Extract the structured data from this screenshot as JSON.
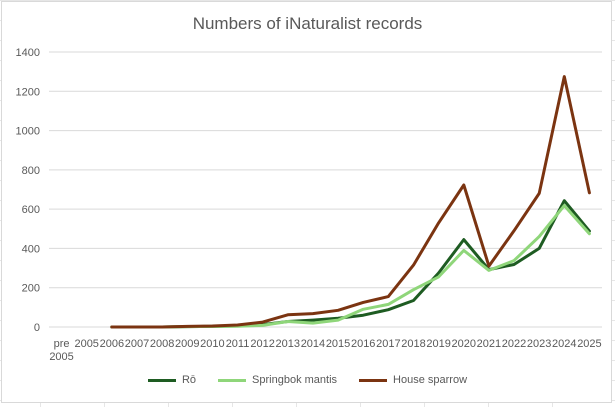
{
  "chart_data": {
    "type": "line",
    "title": "Numbers of iNaturalist records",
    "xlabel": "",
    "ylabel": "",
    "categories": [
      "pre 2005",
      "2005",
      "2006",
      "2007",
      "2008",
      "2009",
      "2010",
      "2011",
      "2012",
      "2013",
      "2014",
      "2015",
      "2016",
      "2017",
      "2018",
      "2019",
      "2020",
      "2021",
      "2022",
      "2023",
      "2024",
      "2025"
    ],
    "ylim": [
      0,
      1400
    ],
    "yticks": [
      0,
      200,
      400,
      600,
      800,
      1000,
      1200,
      1400
    ],
    "grid": true,
    "legend_position": "bottom",
    "series": [
      {
        "name": "Rō",
        "color": "#1e5c22",
        "values": [
          null,
          null,
          0,
          0,
          0,
          2,
          3,
          5,
          12,
          28,
          35,
          45,
          60,
          88,
          135,
          275,
          445,
          292,
          318,
          400,
          643,
          488
        ]
      },
      {
        "name": "Springbok mantis",
        "color": "#8fd67a",
        "values": [
          null,
          null,
          0,
          0,
          0,
          2,
          3,
          4,
          8,
          28,
          20,
          35,
          90,
          115,
          190,
          255,
          390,
          288,
          338,
          460,
          618,
          475
        ]
      },
      {
        "name": "House sparrow",
        "color": "#7b3411",
        "values": [
          null,
          null,
          0,
          0,
          0,
          3,
          5,
          10,
          25,
          62,
          68,
          85,
          125,
          155,
          315,
          530,
          723,
          310,
          490,
          680,
          1275,
          683
        ]
      }
    ]
  }
}
